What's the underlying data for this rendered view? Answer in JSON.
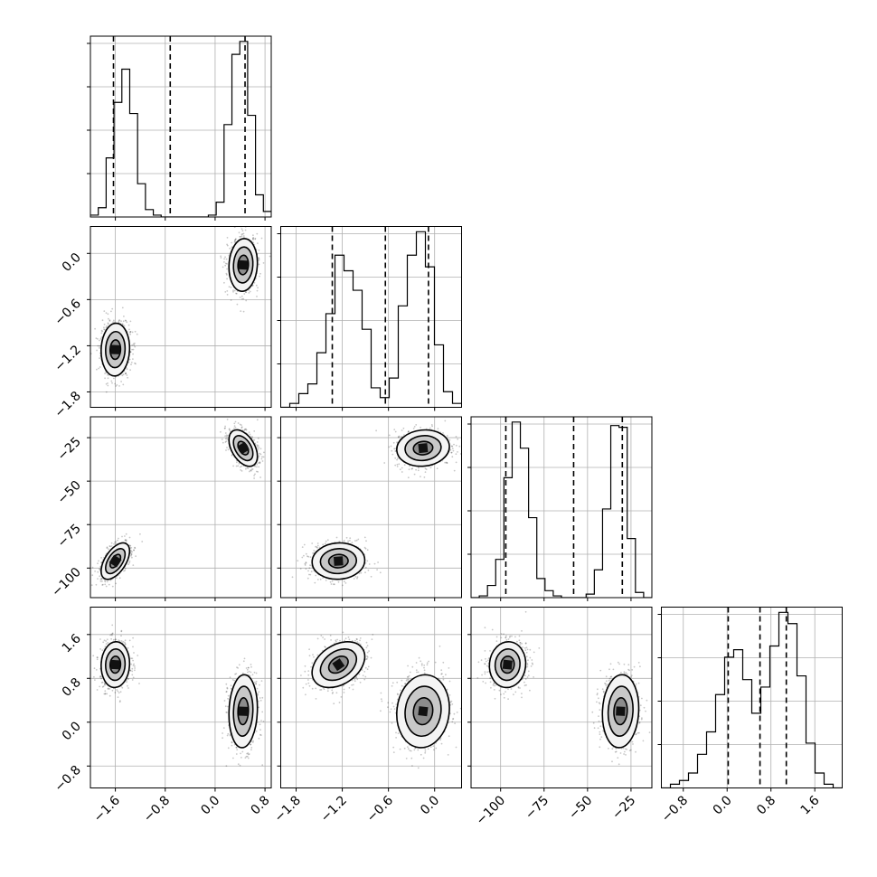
{
  "figure": {
    "type": "corner-plot",
    "n_params": 4
  },
  "chart_data": {
    "type": "corner",
    "parameters": [
      {
        "name": "",
        "range": [
          -2.0,
          0.9
        ],
        "ticks": [
          -1.6,
          -0.8,
          0.0,
          0.8
        ],
        "tick_labels": [
          "−1.6",
          "−0.8",
          "0.0",
          "0.8"
        ]
      },
      {
        "name": "",
        "range": [
          -2.0,
          0.35
        ],
        "ticks": [
          -1.8,
          -1.2,
          -0.6,
          0.0
        ],
        "tick_labels": [
          "−1.8",
          "−1.2",
          "−0.6",
          "0.0"
        ]
      },
      {
        "name": "",
        "range": [
          -117,
          -13
        ],
        "ticks": [
          -100,
          -75,
          -50,
          -25
        ],
        "tick_labels": [
          "−100",
          "−75",
          "−50",
          "−25"
        ]
      },
      {
        "name": "",
        "range": [
          -1.2,
          2.1
        ],
        "ticks": [
          -0.8,
          0.0,
          0.8,
          1.6
        ],
        "tick_labels": [
          "−0.8",
          "0.0",
          "0.8",
          "1.6"
        ]
      }
    ],
    "quantiles": [
      [
        -1.63,
        -0.72,
        0.48
      ],
      [
        -1.33,
        -0.64,
        -0.08
      ],
      [
        -97,
        -58,
        -30
      ],
      [
        0.02,
        0.6,
        1.08
      ]
    ],
    "modes": [
      {
        "weight": 0.5,
        "mean": [
          -1.6,
          -1.25,
          -96,
          1.05
        ],
        "sd": [
          0.12,
          0.18,
          5.5,
          0.22
        ]
      },
      {
        "weight": 0.5,
        "mean": [
          0.45,
          -0.15,
          -31,
          0.2
        ],
        "sd": [
          0.12,
          0.18,
          5.5,
          0.35
        ]
      }
    ],
    "histograms": [
      {
        "bins_from": -2.0,
        "bins_to": 0.9,
        "counts": [
          1,
          5,
          32,
          62,
          80,
          56,
          18,
          4,
          1,
          0,
          0,
          0,
          0,
          0,
          0,
          1,
          8,
          50,
          88,
          95,
          55,
          12,
          3
        ]
      },
      {
        "bins_from": -2.0,
        "bins_to": 0.35,
        "counts": [
          0,
          2,
          7,
          12,
          28,
          48,
          78,
          70,
          60,
          40,
          10,
          5,
          15,
          52,
          78,
          90,
          72,
          32,
          8,
          2
        ]
      },
      {
        "bins_from": -117,
        "bins_to": -13,
        "counts": [
          0,
          1,
          7,
          22,
          69,
          101,
          86,
          46,
          11,
          4,
          1,
          0,
          0,
          0,
          2,
          16,
          51,
          99,
          98,
          34,
          3,
          0
        ]
      },
      {
        "bins_from": -1.2,
        "bins_to": 2.1,
        "counts": [
          0,
          1,
          2,
          4,
          9,
          15,
          25,
          35,
          37,
          29,
          20,
          27,
          38,
          47,
          44,
          30,
          12,
          4,
          1,
          0
        ]
      }
    ],
    "contour_levels_sigma": [
      0.7,
      1.3,
      1.9
    ]
  }
}
